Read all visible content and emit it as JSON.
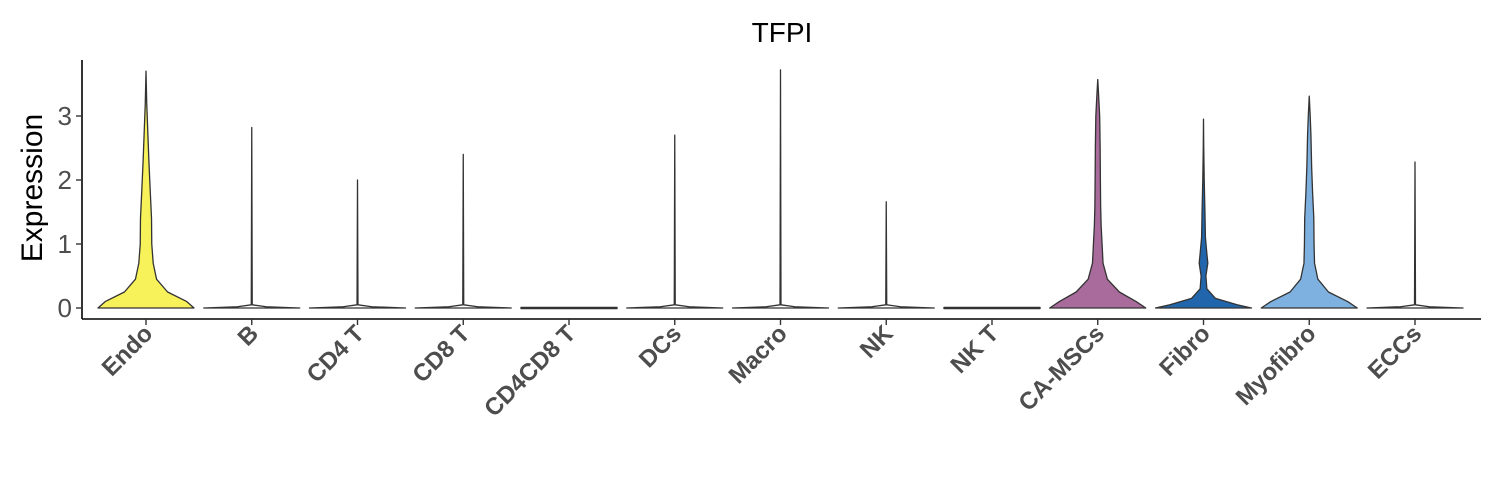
{
  "chart_data": {
    "type": "violin",
    "title": "TFPI",
    "xlabel": "",
    "ylabel": "Expression",
    "ylim": [
      -0.15,
      3.9
    ],
    "yticks": [
      0,
      1,
      2,
      3
    ],
    "grid": false,
    "legend": "none",
    "categories": [
      "Endo",
      "B",
      "CD4 T",
      "CD8 T",
      "CD4CD8 T",
      "DCs",
      "Macro",
      "NK",
      "NK T",
      "CA-MSCs",
      "Fibro",
      "Myofibro",
      "ECCs"
    ],
    "series": [
      {
        "category": "Endo",
        "color": "#f7f259",
        "max": 3.7,
        "profile": [
          [
            0,
            1.0
          ],
          [
            0.1,
            0.85
          ],
          [
            0.25,
            0.45
          ],
          [
            0.45,
            0.22
          ],
          [
            0.7,
            0.15
          ],
          [
            1.0,
            0.12
          ],
          [
            1.4,
            0.115
          ],
          [
            1.8,
            0.09
          ],
          [
            2.3,
            0.06
          ],
          [
            2.8,
            0.035
          ],
          [
            3.2,
            0.015
          ],
          [
            3.7,
            0.0
          ]
        ]
      },
      {
        "category": "B",
        "color": "#ffffff",
        "max": 2.82,
        "profile": [
          [
            0,
            1.0
          ],
          [
            0.02,
            0.3
          ],
          [
            0.05,
            0.01
          ],
          [
            2.82,
            0.0
          ]
        ]
      },
      {
        "category": "CD4 T",
        "color": "#ffffff",
        "max": 2.0,
        "profile": [
          [
            0,
            1.0
          ],
          [
            0.02,
            0.3
          ],
          [
            0.05,
            0.01
          ],
          [
            2.0,
            0.0
          ]
        ]
      },
      {
        "category": "CD8 T",
        "color": "#ffffff",
        "max": 2.4,
        "profile": [
          [
            0,
            1.0
          ],
          [
            0.02,
            0.3
          ],
          [
            0.05,
            0.01
          ],
          [
            2.4,
            0.0
          ]
        ]
      },
      {
        "category": "CD4CD8 T",
        "color": "#ffffff",
        "max": 0.0,
        "profile": [
          [
            0,
            1.0
          ]
        ]
      },
      {
        "category": "DCs",
        "color": "#ffffff",
        "max": 2.7,
        "profile": [
          [
            0,
            1.0
          ],
          [
            0.02,
            0.3
          ],
          [
            0.05,
            0.01
          ],
          [
            2.7,
            0.0
          ]
        ]
      },
      {
        "category": "Macro",
        "color": "#ffffff",
        "max": 3.72,
        "profile": [
          [
            0,
            1.0
          ],
          [
            0.02,
            0.3
          ],
          [
            0.05,
            0.01
          ],
          [
            3.72,
            0.0
          ]
        ]
      },
      {
        "category": "NK",
        "color": "#ffffff",
        "max": 1.66,
        "profile": [
          [
            0,
            1.0
          ],
          [
            0.02,
            0.3
          ],
          [
            0.05,
            0.01
          ],
          [
            1.66,
            0.0
          ]
        ]
      },
      {
        "category": "NK T",
        "color": "#ffffff",
        "max": 0.0,
        "profile": [
          [
            0,
            1.0
          ]
        ]
      },
      {
        "category": "CA-MSCs",
        "color": "#a86b9b",
        "max": 3.57,
        "profile": [
          [
            0,
            1.0
          ],
          [
            0.1,
            0.8
          ],
          [
            0.25,
            0.45
          ],
          [
            0.45,
            0.2
          ],
          [
            0.7,
            0.11
          ],
          [
            1.0,
            0.09
          ],
          [
            1.3,
            0.07
          ],
          [
            1.6,
            0.06
          ],
          [
            2.0,
            0.055
          ],
          [
            2.5,
            0.05
          ],
          [
            3.0,
            0.04
          ],
          [
            3.3,
            0.02
          ],
          [
            3.57,
            0.0
          ]
        ]
      },
      {
        "category": "Fibro",
        "color": "#2166ac",
        "max": 2.95,
        "profile": [
          [
            0,
            1.0
          ],
          [
            0.05,
            0.7
          ],
          [
            0.15,
            0.25
          ],
          [
            0.3,
            0.07
          ],
          [
            0.5,
            0.05
          ],
          [
            0.7,
            0.09
          ],
          [
            0.85,
            0.07
          ],
          [
            1.1,
            0.04
          ],
          [
            1.5,
            0.03
          ],
          [
            2.0,
            0.015
          ],
          [
            2.5,
            0.005
          ],
          [
            2.95,
            0.0
          ]
        ]
      },
      {
        "category": "Myofibro",
        "color": "#7fb1e0",
        "max": 3.31,
        "profile": [
          [
            0,
            1.0
          ],
          [
            0.1,
            0.8
          ],
          [
            0.25,
            0.4
          ],
          [
            0.45,
            0.18
          ],
          [
            0.7,
            0.11
          ],
          [
            1.0,
            0.1
          ],
          [
            1.4,
            0.095
          ],
          [
            1.8,
            0.07
          ],
          [
            2.2,
            0.05
          ],
          [
            2.7,
            0.035
          ],
          [
            3.0,
            0.02
          ],
          [
            3.31,
            0.0
          ]
        ]
      },
      {
        "category": "ECCs",
        "color": "#ffffff",
        "max": 2.28,
        "profile": [
          [
            0,
            1.0
          ],
          [
            0.02,
            0.3
          ],
          [
            0.05,
            0.01
          ],
          [
            2.28,
            0.0
          ]
        ]
      }
    ]
  }
}
